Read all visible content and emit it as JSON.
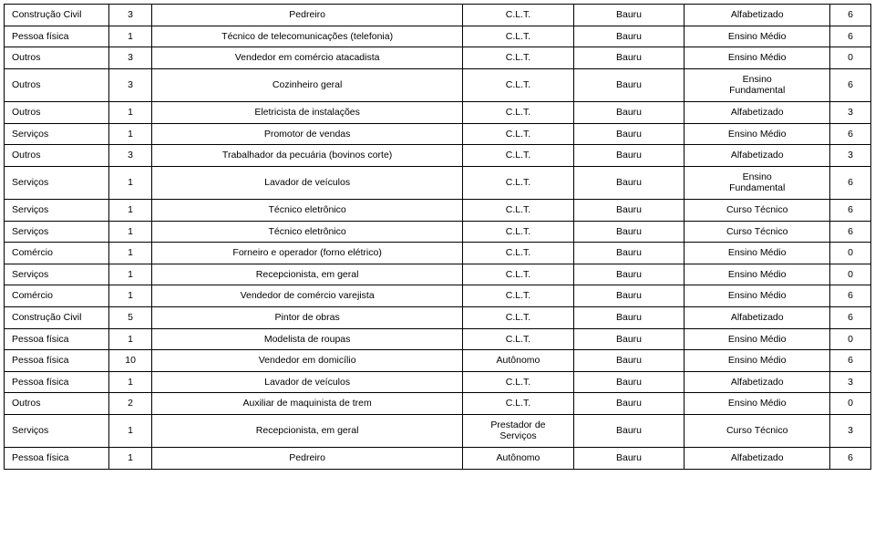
{
  "rows": [
    {
      "c1": "Construção Civil",
      "c2": "3",
      "c3": "Pedreiro",
      "c4": "C.L.T.",
      "c5": "Bauru",
      "c6": "Alfabetizado",
      "c7": "6"
    },
    {
      "c1": "Pessoa física",
      "c2": "1",
      "c3": "Técnico de telecomunicações (telefonia)",
      "c4": "C.L.T.",
      "c5": "Bauru",
      "c6": "Ensino Médio",
      "c7": "6"
    },
    {
      "c1": "Outros",
      "c2": "3",
      "c3": "Vendedor em comércio atacadista",
      "c4": "C.L.T.",
      "c5": "Bauru",
      "c6": "Ensino Médio",
      "c7": "0"
    },
    {
      "c1": "Outros",
      "c2": "3",
      "c3": "Cozinheiro geral",
      "c4": "C.L.T.",
      "c5": "Bauru",
      "c6": "Ensino\nFundamental",
      "c7": "6"
    },
    {
      "c1": "Outros",
      "c2": "1",
      "c3": "Eletricista de instalações",
      "c4": "C.L.T.",
      "c5": "Bauru",
      "c6": "Alfabetizado",
      "c7": "3"
    },
    {
      "c1": "Serviços",
      "c2": "1",
      "c3": "Promotor de vendas",
      "c4": "C.L.T.",
      "c5": "Bauru",
      "c6": "Ensino Médio",
      "c7": "6"
    },
    {
      "c1": "Outros",
      "c2": "3",
      "c3": "Trabalhador da pecuária (bovinos corte)",
      "c4": "C.L.T.",
      "c5": "Bauru",
      "c6": "Alfabetizado",
      "c7": "3"
    },
    {
      "c1": "Serviços",
      "c2": "1",
      "c3": "Lavador de veículos",
      "c4": "C.L.T.",
      "c5": "Bauru",
      "c6": "Ensino\nFundamental",
      "c7": "6"
    },
    {
      "c1": "Serviços",
      "c2": "1",
      "c3": "Técnico eletrônico",
      "c4": "C.L.T.",
      "c5": "Bauru",
      "c6": "Curso Técnico",
      "c7": "6"
    },
    {
      "c1": "Serviços",
      "c2": "1",
      "c3": "Técnico eletrônico",
      "c4": "C.L.T.",
      "c5": "Bauru",
      "c6": "Curso Técnico",
      "c7": "6"
    },
    {
      "c1": "Comércio",
      "c2": "1",
      "c3": "Forneiro e operador (forno elétrico)",
      "c4": "C.L.T.",
      "c5": "Bauru",
      "c6": "Ensino Médio",
      "c7": "0"
    },
    {
      "c1": "Serviços",
      "c2": "1",
      "c3": "Recepcionista, em geral",
      "c4": "C.L.T.",
      "c5": "Bauru",
      "c6": "Ensino Médio",
      "c7": "0"
    },
    {
      "c1": "Comércio",
      "c2": "1",
      "c3": "Vendedor de comércio varejista",
      "c4": "C.L.T.",
      "c5": "Bauru",
      "c6": "Ensino Médio",
      "c7": "6"
    },
    {
      "c1": "Construção Civil",
      "c2": "5",
      "c3": "Pintor de obras",
      "c4": "C.L.T.",
      "c5": "Bauru",
      "c6": "Alfabetizado",
      "c7": "6"
    },
    {
      "c1": "Pessoa física",
      "c2": "1",
      "c3": "Modelista de roupas",
      "c4": "C.L.T.",
      "c5": "Bauru",
      "c6": "Ensino Médio",
      "c7": "0"
    },
    {
      "c1": "Pessoa física",
      "c2": "10",
      "c3": "Vendedor em domicílio",
      "c4": "Autônomo",
      "c5": "Bauru",
      "c6": "Ensino Médio",
      "c7": "6"
    },
    {
      "c1": "Pessoa física",
      "c2": "1",
      "c3": "Lavador de veículos",
      "c4": "C.L.T.",
      "c5": "Bauru",
      "c6": "Alfabetizado",
      "c7": "3"
    },
    {
      "c1": "Outros",
      "c2": "2",
      "c3": "Auxiliar de maquinista de trem",
      "c4": "C.L.T.",
      "c5": "Bauru",
      "c6": "Ensino Médio",
      "c7": "0"
    },
    {
      "c1": "Serviços",
      "c2": "1",
      "c3": "Recepcionista, em geral",
      "c4": "Prestador de\nServiços",
      "c5": "Bauru",
      "c6": "Curso Técnico",
      "c7": "3"
    },
    {
      "c1": "Pessoa física",
      "c2": "1",
      "c3": "Pedreiro",
      "c4": "Autônomo",
      "c5": "Bauru",
      "c6": "Alfabetizado",
      "c7": "6"
    }
  ]
}
